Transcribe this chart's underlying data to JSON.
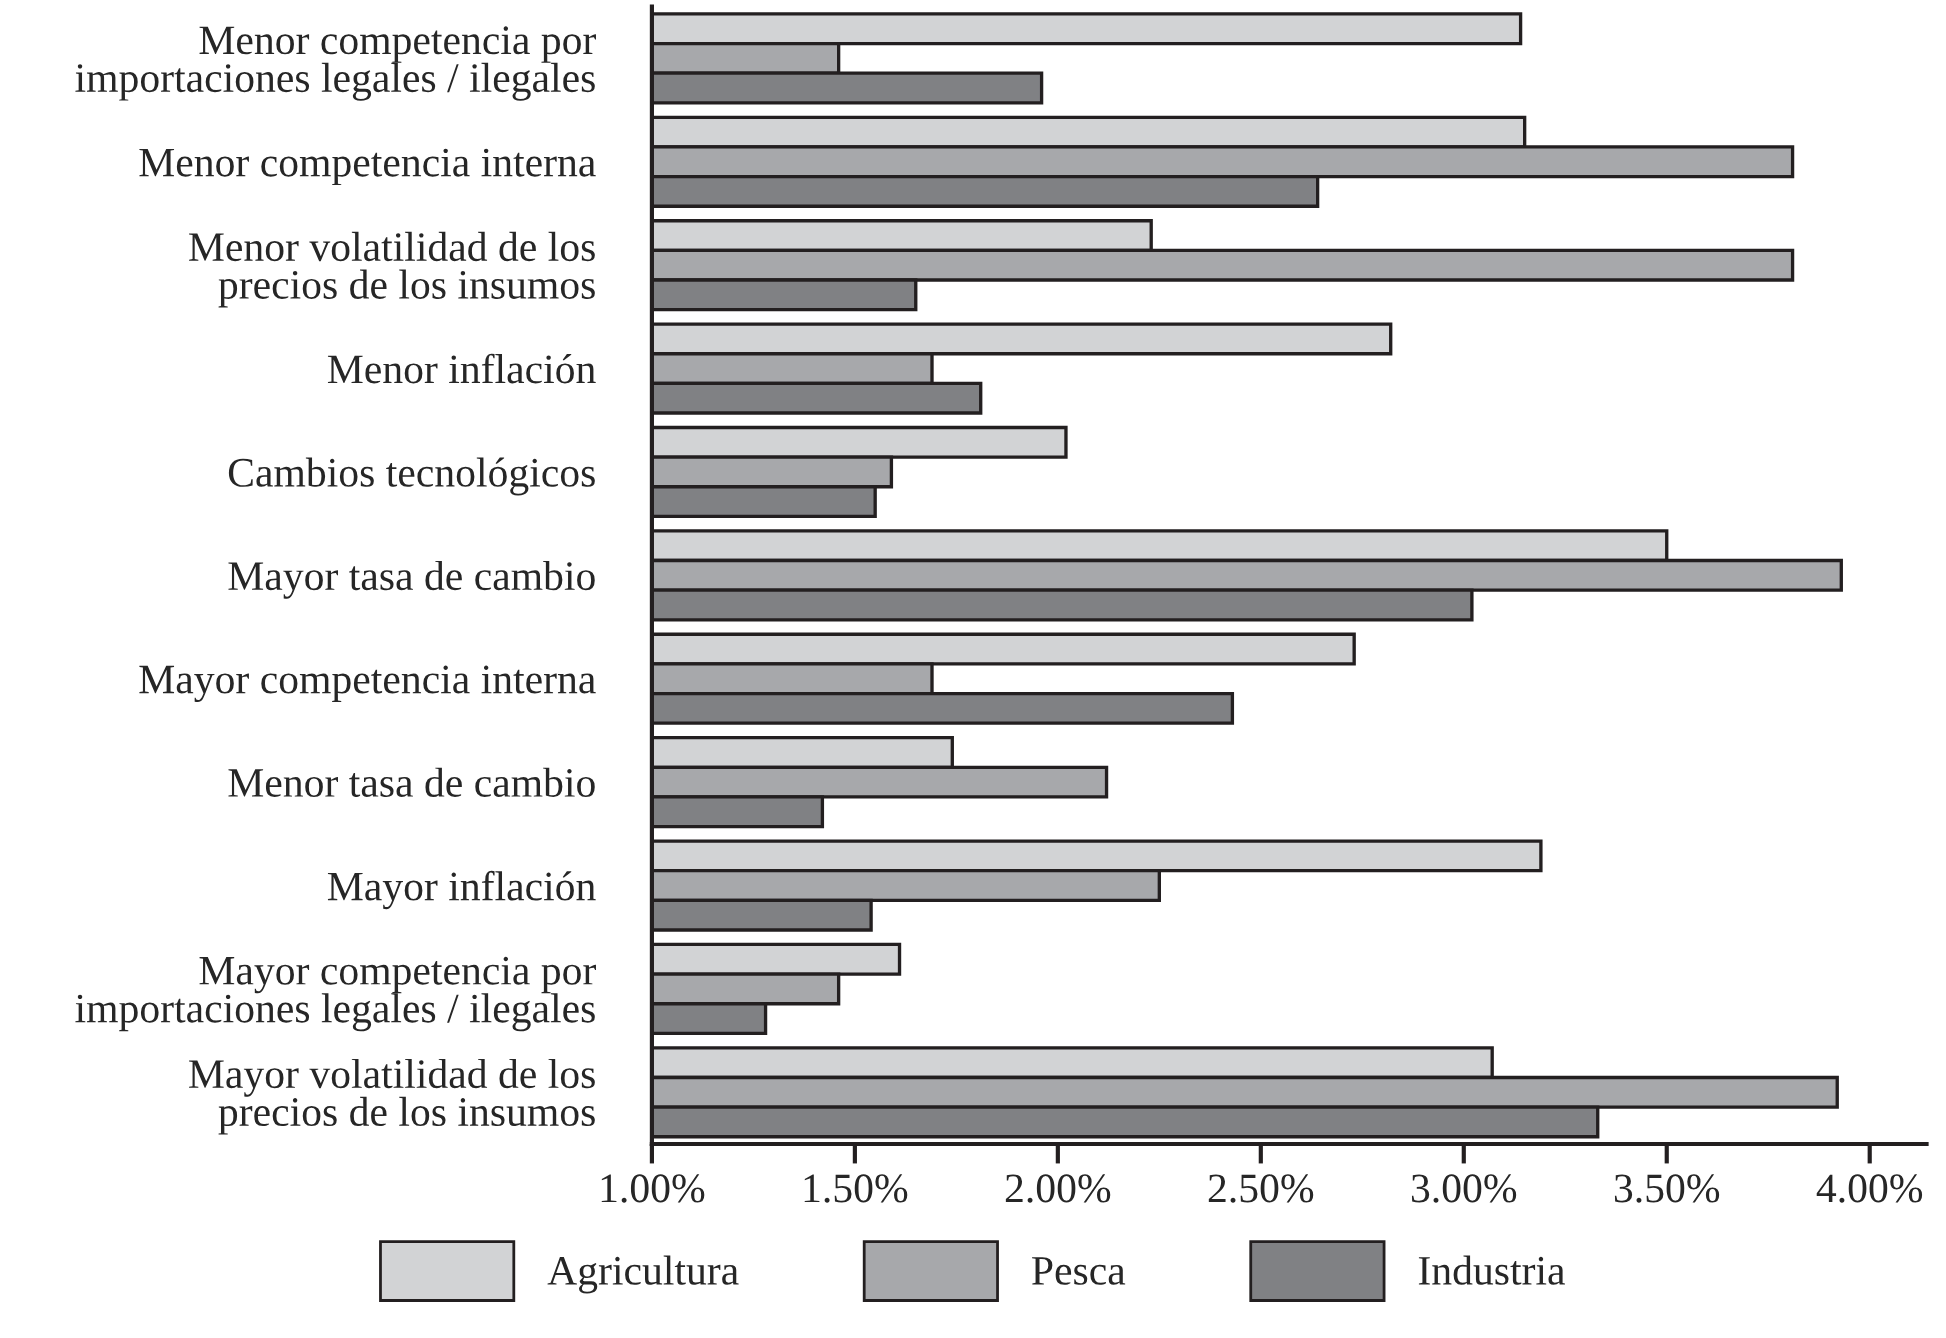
{
  "chart_data": {
    "type": "bar",
    "orientation": "horizontal",
    "categories": [
      "Menor competencia por\nimportaciones legales / ilegales",
      "Menor competencia interna",
      "Menor volatilidad de los\nprecios de los insumos",
      "Menor inflación",
      "Cambios tecnológicos",
      "Mayor tasa de cambio",
      "Mayor competencia interna",
      "Menor tasa de cambio",
      "Mayor inflación",
      "Mayor competencia por\nimportaciones legales / ilegales",
      "Mayor volatilidad de los\nprecios de los insumos"
    ],
    "series": [
      {
        "name": "Agricultura",
        "color": "#d2d3d5",
        "values": [
          3.14,
          3.15,
          2.23,
          2.82,
          2.02,
          3.5,
          2.73,
          1.74,
          3.19,
          1.61,
          3.07
        ]
      },
      {
        "name": "Pesca",
        "color": "#a7a8ab",
        "values": [
          1.46,
          3.81,
          3.81,
          1.69,
          1.59,
          3.93,
          1.69,
          2.12,
          2.25,
          1.46,
          3.92
        ]
      },
      {
        "name": "Industria",
        "color": "#808184",
        "values": [
          1.96,
          2.64,
          1.65,
          1.81,
          1.55,
          3.02,
          2.43,
          1.42,
          1.54,
          1.28,
          3.33
        ]
      }
    ],
    "xlim": [
      1.0,
      4.14
    ],
    "xticks": [
      {
        "value": 1.0,
        "label": "1.00%"
      },
      {
        "value": 1.5,
        "label": "1.50%"
      },
      {
        "value": 2.0,
        "label": "2.00%"
      },
      {
        "value": 2.5,
        "label": "2.50%"
      },
      {
        "value": 3.0,
        "label": "3.00%"
      },
      {
        "value": 3.5,
        "label": "3.50%"
      },
      {
        "value": 4.0,
        "label": "4.00%"
      }
    ],
    "legend": "bottom",
    "grid": false
  }
}
